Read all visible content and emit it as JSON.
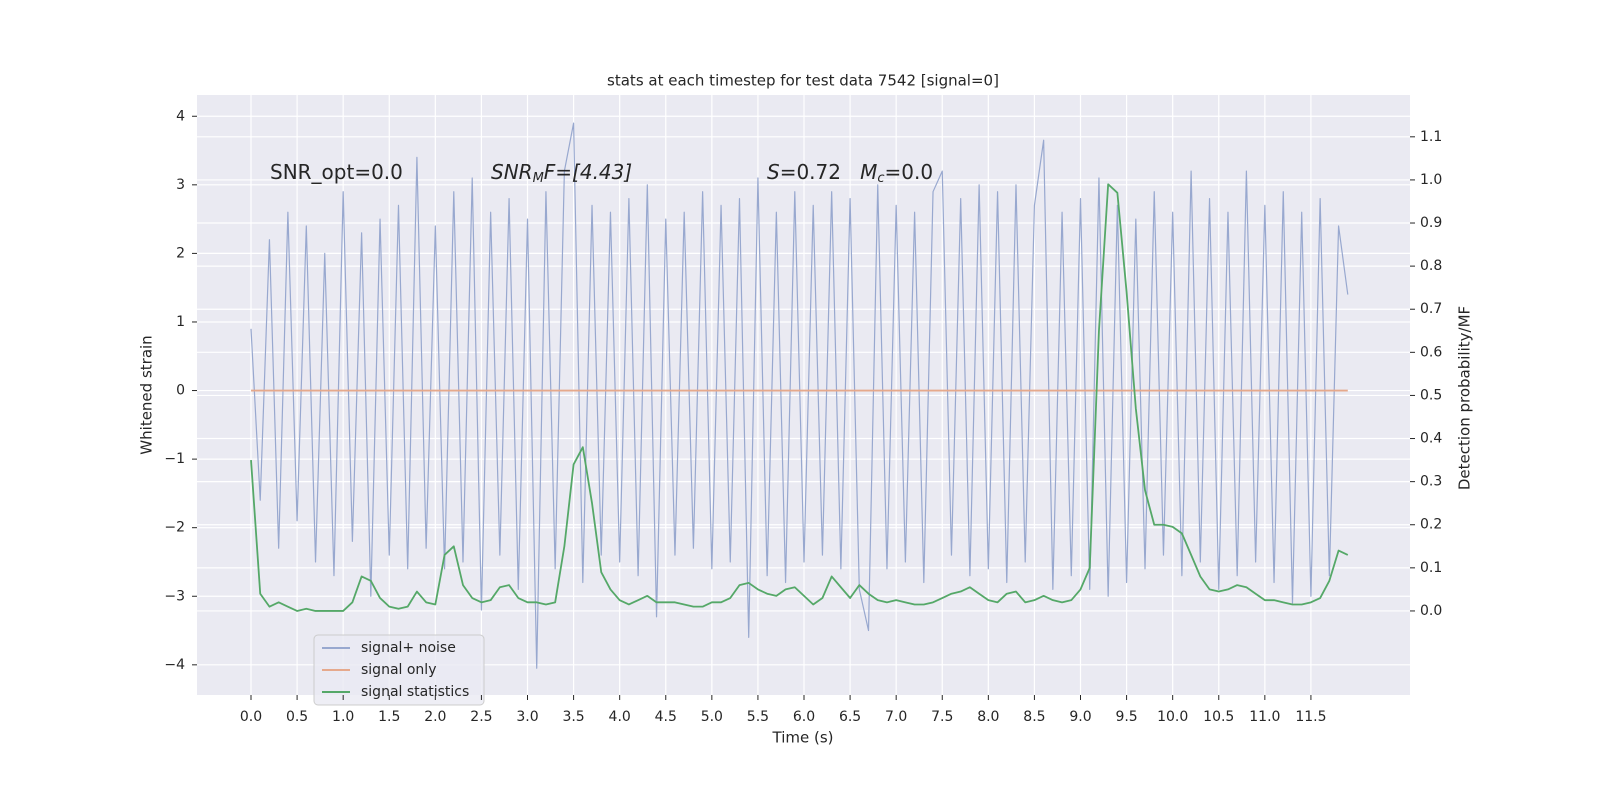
{
  "chart_data": {
    "type": "line",
    "title": "stats at each timestep for test data 7542 [signal=0]",
    "x_label": "Time (s)",
    "y_label": "Whitened strain",
    "y2_label": "Detection probability/MF",
    "annotations": [
      [
        "SNR_opt=0.0"
      ],
      [
        "SNR",
        "M",
        "F=[4.43]"
      ],
      [
        "S",
        "=0.72   ",
        "M",
        "c",
        "=0.0"
      ]
    ],
    "x": [
      0.0,
      0.1,
      0.2,
      0.3,
      0.4,
      0.5,
      0.6,
      0.7,
      0.8,
      0.9,
      1.0,
      1.1,
      1.2,
      1.3,
      1.4,
      1.5,
      1.6,
      1.7,
      1.8,
      1.9,
      2.0,
      2.1,
      2.2,
      2.3,
      2.4,
      2.5,
      2.6,
      2.7,
      2.8,
      2.9,
      3.0,
      3.1,
      3.2,
      3.3,
      3.4,
      3.5,
      3.6,
      3.7,
      3.8,
      3.9,
      4.0,
      4.1,
      4.2,
      4.3,
      4.4,
      4.5,
      4.6,
      4.7,
      4.8,
      4.9,
      5.0,
      5.1,
      5.2,
      5.3,
      5.4,
      5.5,
      5.6,
      5.7,
      5.8,
      5.9,
      6.0,
      6.1,
      6.2,
      6.3,
      6.4,
      6.5,
      6.6,
      6.7,
      6.8,
      6.9,
      7.0,
      7.1,
      7.2,
      7.3,
      7.4,
      7.5,
      7.6,
      7.7,
      7.8,
      7.9,
      8.0,
      8.1,
      8.2,
      8.3,
      8.4,
      8.5,
      8.6,
      8.7,
      8.8,
      8.9,
      9.0,
      9.1,
      9.2,
      9.3,
      9.4,
      9.5,
      9.6,
      9.7,
      9.8,
      9.9,
      10.0,
      10.1,
      10.2,
      10.3,
      10.4,
      10.5,
      10.6,
      10.7,
      10.8,
      10.9,
      11.0,
      11.1,
      11.2,
      11.3,
      11.4,
      11.5,
      11.6,
      11.7,
      11.8,
      11.9
    ],
    "series": [
      {
        "name": "signal+ noise",
        "color": "#98a8cf",
        "values": [
          0.9,
          -1.6,
          2.2,
          -2.3,
          2.6,
          -1.9,
          2.4,
          -2.5,
          2.0,
          -2.7,
          2.9,
          -2.2,
          2.3,
          -3.0,
          2.5,
          -2.4,
          2.7,
          -2.6,
          3.4,
          -2.3,
          2.4,
          -2.6,
          2.9,
          -2.5,
          3.1,
          -3.2,
          2.6,
          -2.4,
          2.8,
          -2.9,
          2.5,
          -4.05,
          2.9,
          -2.6,
          3.2,
          3.9,
          -2.8,
          2.7,
          -2.4,
          2.6,
          -2.5,
          2.8,
          -2.7,
          3.0,
          -3.3,
          2.5,
          -2.4,
          2.6,
          -2.3,
          2.9,
          -2.6,
          2.7,
          -2.5,
          2.8,
          -3.6,
          3.1,
          -2.7,
          2.6,
          -2.8,
          2.9,
          -2.5,
          2.7,
          -2.4,
          2.9,
          -2.6,
          2.8,
          -2.9,
          -3.5,
          3.0,
          -2.6,
          2.7,
          -2.5,
          2.6,
          -2.8,
          2.9,
          3.2,
          -2.4,
          2.8,
          -2.7,
          3.0,
          -2.6,
          2.9,
          -2.8,
          3.0,
          -2.5,
          2.7,
          3.65,
          -2.9,
          2.6,
          -2.7,
          2.8,
          -2.9,
          3.1,
          -3.0,
          2.7,
          -2.8,
          2.5,
          -2.6,
          2.9,
          -2.4,
          2.6,
          -2.7,
          3.2,
          -2.5,
          2.8,
          -2.9,
          2.6,
          -2.7,
          3.2,
          -2.5,
          2.7,
          -2.8,
          2.9,
          -3.1,
          2.6,
          -3.0,
          2.8,
          -2.7,
          2.4,
          1.4
        ]
      },
      {
        "name": "signal only",
        "color": "#e6a98c",
        "values": [
          0,
          0,
          0,
          0,
          0,
          0,
          0,
          0,
          0,
          0,
          0,
          0,
          0,
          0,
          0,
          0,
          0,
          0,
          0,
          0,
          0,
          0,
          0,
          0,
          0,
          0,
          0,
          0,
          0,
          0,
          0,
          0,
          0,
          0,
          0,
          0,
          0,
          0,
          0,
          0,
          0,
          0,
          0,
          0,
          0,
          0,
          0,
          0,
          0,
          0,
          0,
          0,
          0,
          0,
          0,
          0,
          0,
          0,
          0,
          0,
          0,
          0,
          0,
          0,
          0,
          0,
          0,
          0,
          0,
          0,
          0,
          0,
          0,
          0,
          0,
          0,
          0,
          0,
          0,
          0,
          0,
          0,
          0,
          0,
          0,
          0,
          0,
          0,
          0,
          0,
          0,
          0,
          0,
          0,
          0,
          0,
          0,
          0,
          0,
          0,
          0,
          0,
          0,
          0,
          0,
          0,
          0,
          0,
          0,
          0,
          0,
          0,
          0,
          0,
          0,
          0,
          0,
          0,
          0,
          0
        ]
      },
      {
        "name": "signal statistics",
        "color": "#55a868",
        "axis": "y2",
        "values": [
          0.35,
          0.04,
          0.01,
          0.02,
          0.01,
          0.0,
          0.005,
          0.0,
          0.0,
          0.0,
          0.0,
          0.02,
          0.08,
          0.07,
          0.03,
          0.01,
          0.005,
          0.01,
          0.045,
          0.02,
          0.015,
          0.13,
          0.15,
          0.06,
          0.03,
          0.02,
          0.025,
          0.055,
          0.06,
          0.03,
          0.02,
          0.02,
          0.015,
          0.02,
          0.15,
          0.34,
          0.38,
          0.25,
          0.09,
          0.05,
          0.025,
          0.015,
          0.025,
          0.035,
          0.02,
          0.02,
          0.02,
          0.015,
          0.01,
          0.01,
          0.02,
          0.02,
          0.03,
          0.06,
          0.065,
          0.05,
          0.04,
          0.035,
          0.05,
          0.055,
          0.035,
          0.015,
          0.03,
          0.08,
          0.055,
          0.03,
          0.06,
          0.04,
          0.025,
          0.02,
          0.025,
          0.02,
          0.015,
          0.015,
          0.02,
          0.03,
          0.04,
          0.045,
          0.055,
          0.04,
          0.025,
          0.02,
          0.04,
          0.045,
          0.02,
          0.025,
          0.035,
          0.025,
          0.02,
          0.025,
          0.05,
          0.1,
          0.65,
          0.99,
          0.97,
          0.74,
          0.47,
          0.28,
          0.2,
          0.2,
          0.195,
          0.18,
          0.13,
          0.08,
          0.05,
          0.045,
          0.05,
          0.06,
          0.055,
          0.04,
          0.025,
          0.025,
          0.02,
          0.015,
          0.015,
          0.02,
          0.03,
          0.07,
          0.14,
          0.13
        ]
      }
    ],
    "xlim": [
      -0.586,
      12.575
    ],
    "xticks": [
      {
        "value": 0,
        "label": "0.0"
      },
      {
        "value": 0.5,
        "label": "0.5"
      },
      {
        "value": 1,
        "label": "1.0"
      },
      {
        "value": 1.5,
        "label": "1.5"
      },
      {
        "value": 2,
        "label": "2.0"
      },
      {
        "value": 2.5,
        "label": "2.5"
      },
      {
        "value": 3,
        "label": "3.0"
      },
      {
        "value": 3.5,
        "label": "3.5"
      },
      {
        "value": 4,
        "label": "4.0"
      },
      {
        "value": 4.5,
        "label": "4.5"
      },
      {
        "value": 5,
        "label": "5.0"
      },
      {
        "value": 5.5,
        "label": "5.5"
      },
      {
        "value": 6,
        "label": "6.0"
      },
      {
        "value": 6.5,
        "label": "6.5"
      },
      {
        "value": 7,
        "label": "7.0"
      },
      {
        "value": 7.5,
        "label": "7.5"
      },
      {
        "value": 8,
        "label": "8.0"
      },
      {
        "value": 8.5,
        "label": "8.5"
      },
      {
        "value": 9,
        "label": "9.0"
      },
      {
        "value": 9.5,
        "label": "9.5"
      },
      {
        "value": 10,
        "label": "10.0"
      },
      {
        "value": 10.5,
        "label": "10.5"
      },
      {
        "value": 11,
        "label": "11.0"
      },
      {
        "value": 11.5,
        "label": "11.5"
      }
    ],
    "ylim": [
      -4.44,
      4.31
    ],
    "yticks": [
      {
        "value": -4,
        "label": "−4"
      },
      {
        "value": -3,
        "label": "−3"
      },
      {
        "value": -2,
        "label": "−2"
      },
      {
        "value": -1,
        "label": "−1"
      },
      0,
      1,
      2,
      3,
      4
    ],
    "y2lim": [
      -0.195,
      1.197
    ],
    "y2ticks": [
      {
        "value": 0,
        "label": "0.0"
      },
      {
        "value": 0.1,
        "label": "0.1"
      },
      {
        "value": 0.2,
        "label": "0.2"
      },
      {
        "value": 0.3,
        "label": "0.3"
      },
      {
        "value": 0.4,
        "label": "0.4"
      },
      {
        "value": 0.5,
        "label": "0.5"
      },
      {
        "value": 0.6,
        "label": "0.6"
      },
      {
        "value": 0.7,
        "label": "0.7"
      },
      {
        "value": 0.8,
        "label": "0.8"
      },
      {
        "value": 0.9,
        "label": "0.9"
      },
      {
        "value": 1.0,
        "label": "1.0"
      },
      {
        "value": 1.1,
        "label": "1.1"
      }
    ],
    "grid": true,
    "legend": "lower left"
  }
}
